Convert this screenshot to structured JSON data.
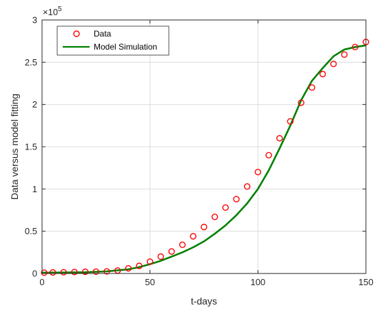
{
  "chart_data": {
    "type": "scatter",
    "xlabel": "t-days",
    "ylabel": "Data versus model fitting",
    "xlim": [
      0,
      150
    ],
    "ylim": [
      0,
      300000
    ],
    "x_ticks": [
      "0",
      "50",
      "100",
      "150"
    ],
    "y_ticks": [
      "0",
      "0.5",
      "1",
      "1.5",
      "2",
      "2.5",
      "3"
    ],
    "y_exponent_label": "×10",
    "y_exponent_power": "5",
    "grid": true,
    "legend_position": "top-left",
    "series": [
      {
        "name": "Data",
        "style": "markers",
        "marker": "circle",
        "color": "#ff0000",
        "x": [
          1,
          5,
          10,
          15,
          20,
          25,
          30,
          35,
          40,
          45,
          50,
          55,
          60,
          65,
          70,
          75,
          80,
          85,
          90,
          95,
          100,
          105,
          110,
          115,
          120,
          125,
          130,
          135,
          140,
          145,
          150
        ],
        "y": [
          1000,
          1200,
          1500,
          1800,
          2000,
          2200,
          2500,
          3500,
          6000,
          9000,
          14000,
          20000,
          26000,
          34000,
          44000,
          55000,
          67000,
          78000,
          88000,
          103000,
          120000,
          140000,
          160000,
          180000,
          202000,
          220000,
          236000,
          248000,
          259000,
          268000,
          274000
        ]
      },
      {
        "name": "Model Simulation",
        "style": "line",
        "color": "#008000",
        "x": [
          0,
          10,
          20,
          30,
          40,
          45,
          50,
          55,
          60,
          65,
          70,
          75,
          80,
          85,
          90,
          95,
          100,
          105,
          110,
          115,
          120,
          125,
          130,
          135,
          140,
          145,
          150
        ],
        "y": [
          1000,
          1200,
          1500,
          2500,
          5000,
          7500,
          11000,
          15000,
          20000,
          25000,
          31000,
          38000,
          47000,
          57000,
          69000,
          83000,
          100000,
          122000,
          148000,
          175000,
          205000,
          228000,
          243000,
          257000,
          265000,
          268000,
          270000
        ]
      }
    ]
  }
}
